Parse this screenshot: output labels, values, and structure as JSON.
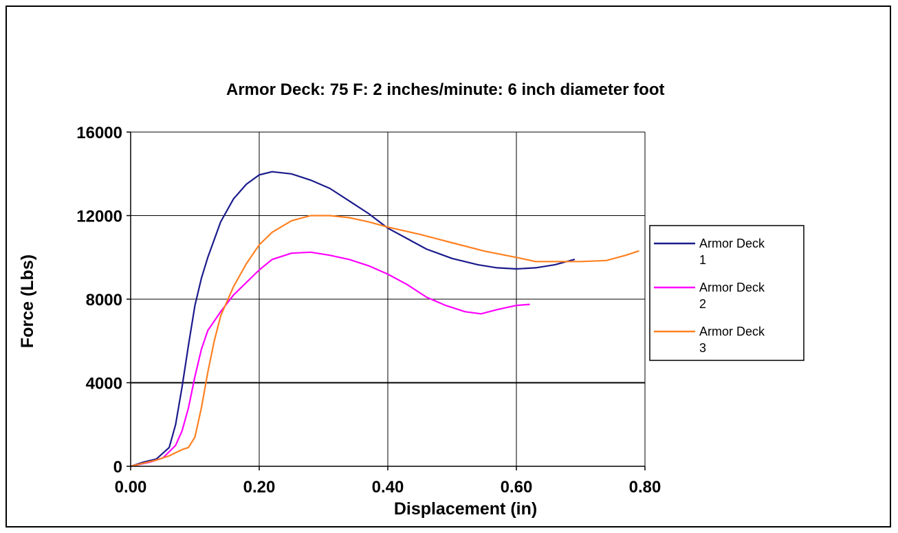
{
  "chart_data": {
    "type": "line",
    "title": "Armor Deck: 75 F: 2 inches/minute: 6 inch diameter foot",
    "xlabel": "Displacement (in)",
    "ylabel": "Force (Lbs)",
    "xlim": [
      0,
      0.8
    ],
    "ylim": [
      0,
      16000
    ],
    "xticks": [
      0,
      0.2,
      0.4,
      0.6,
      0.8
    ],
    "xtick_labels": [
      "0.00",
      "0.20",
      "0.40",
      "0.60",
      "0.80"
    ],
    "yticks": [
      0,
      4000,
      8000,
      12000,
      16000
    ],
    "ytick_labels": [
      "0",
      "4000",
      "8000",
      "12000",
      "16000"
    ],
    "grid": true,
    "legend_position": "right",
    "series": [
      {
        "name": "Armor Deck 1",
        "legend_lines": [
          "Armor Deck",
          "1"
        ],
        "color": "#1a1a8c",
        "points": [
          [
            0.0,
            0
          ],
          [
            0.02,
            200
          ],
          [
            0.04,
            350
          ],
          [
            0.06,
            900
          ],
          [
            0.07,
            2000
          ],
          [
            0.08,
            3800
          ],
          [
            0.09,
            5800
          ],
          [
            0.1,
            7700
          ],
          [
            0.11,
            9000
          ],
          [
            0.12,
            10000
          ],
          [
            0.14,
            11700
          ],
          [
            0.16,
            12800
          ],
          [
            0.18,
            13500
          ],
          [
            0.2,
            13950
          ],
          [
            0.22,
            14100
          ],
          [
            0.25,
            14000
          ],
          [
            0.28,
            13700
          ],
          [
            0.31,
            13300
          ],
          [
            0.34,
            12700
          ],
          [
            0.37,
            12100
          ],
          [
            0.4,
            11400
          ],
          [
            0.43,
            10900
          ],
          [
            0.46,
            10400
          ],
          [
            0.5,
            9950
          ],
          [
            0.54,
            9650
          ],
          [
            0.57,
            9500
          ],
          [
            0.6,
            9450
          ],
          [
            0.63,
            9500
          ],
          [
            0.66,
            9650
          ],
          [
            0.69,
            9900
          ]
        ]
      },
      {
        "name": "Armor Deck 2",
        "legend_lines": [
          "Armor Deck",
          "2"
        ],
        "color": "#ff00ff",
        "points": [
          [
            0.0,
            0
          ],
          [
            0.03,
            200
          ],
          [
            0.05,
            400
          ],
          [
            0.07,
            1000
          ],
          [
            0.08,
            1700
          ],
          [
            0.09,
            2800
          ],
          [
            0.1,
            4300
          ],
          [
            0.11,
            5600
          ],
          [
            0.12,
            6500
          ],
          [
            0.14,
            7400
          ],
          [
            0.16,
            8200
          ],
          [
            0.18,
            8800
          ],
          [
            0.2,
            9400
          ],
          [
            0.22,
            9900
          ],
          [
            0.25,
            10200
          ],
          [
            0.28,
            10250
          ],
          [
            0.31,
            10100
          ],
          [
            0.34,
            9900
          ],
          [
            0.37,
            9600
          ],
          [
            0.4,
            9200
          ],
          [
            0.43,
            8700
          ],
          [
            0.46,
            8100
          ],
          [
            0.49,
            7700
          ],
          [
            0.52,
            7400
          ],
          [
            0.545,
            7300
          ],
          [
            0.57,
            7500
          ],
          [
            0.6,
            7700
          ],
          [
            0.62,
            7750
          ]
        ]
      },
      {
        "name": "Armor Deck 3",
        "legend_lines": [
          "Armor Deck",
          "3"
        ],
        "color": "#ff8020",
        "points": [
          [
            0.0,
            0
          ],
          [
            0.04,
            300
          ],
          [
            0.06,
            500
          ],
          [
            0.08,
            800
          ],
          [
            0.09,
            900
          ],
          [
            0.1,
            1400
          ],
          [
            0.11,
            2800
          ],
          [
            0.12,
            4500
          ],
          [
            0.13,
            6000
          ],
          [
            0.14,
            7200
          ],
          [
            0.16,
            8600
          ],
          [
            0.18,
            9700
          ],
          [
            0.2,
            10600
          ],
          [
            0.22,
            11200
          ],
          [
            0.25,
            11750
          ],
          [
            0.28,
            12000
          ],
          [
            0.31,
            12000
          ],
          [
            0.34,
            11900
          ],
          [
            0.37,
            11700
          ],
          [
            0.4,
            11450
          ],
          [
            0.45,
            11100
          ],
          [
            0.5,
            10700
          ],
          [
            0.55,
            10300
          ],
          [
            0.6,
            10000
          ],
          [
            0.63,
            9800
          ],
          [
            0.66,
            9800
          ],
          [
            0.7,
            9800
          ],
          [
            0.74,
            9850
          ],
          [
            0.77,
            10100
          ],
          [
            0.79,
            10300
          ]
        ]
      }
    ]
  }
}
